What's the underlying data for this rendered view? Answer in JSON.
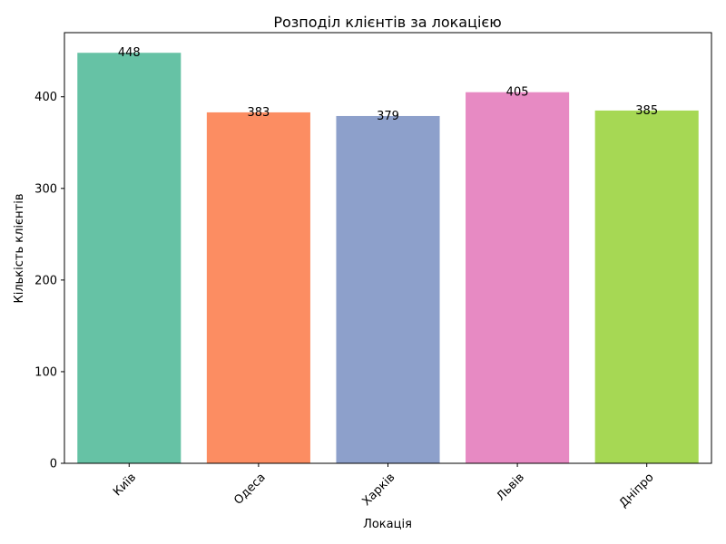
{
  "chart_data": {
    "type": "bar",
    "title": "Розподіл клієнтів за локацією",
    "xlabel": "Локація",
    "ylabel": "Кількість клієнтів",
    "categories": [
      "Київ",
      "Одеса",
      "Харків",
      "Львів",
      "Дніпро"
    ],
    "values": [
      448,
      383,
      379,
      405,
      385
    ],
    "colors": [
      "#66c2a5",
      "#fc8d62",
      "#8da0cb",
      "#e78ac3",
      "#a6d854"
    ],
    "ylim": [
      0,
      470
    ],
    "yticks": [
      0,
      100,
      200,
      300,
      400
    ],
    "grid": false,
    "legend": "none"
  }
}
